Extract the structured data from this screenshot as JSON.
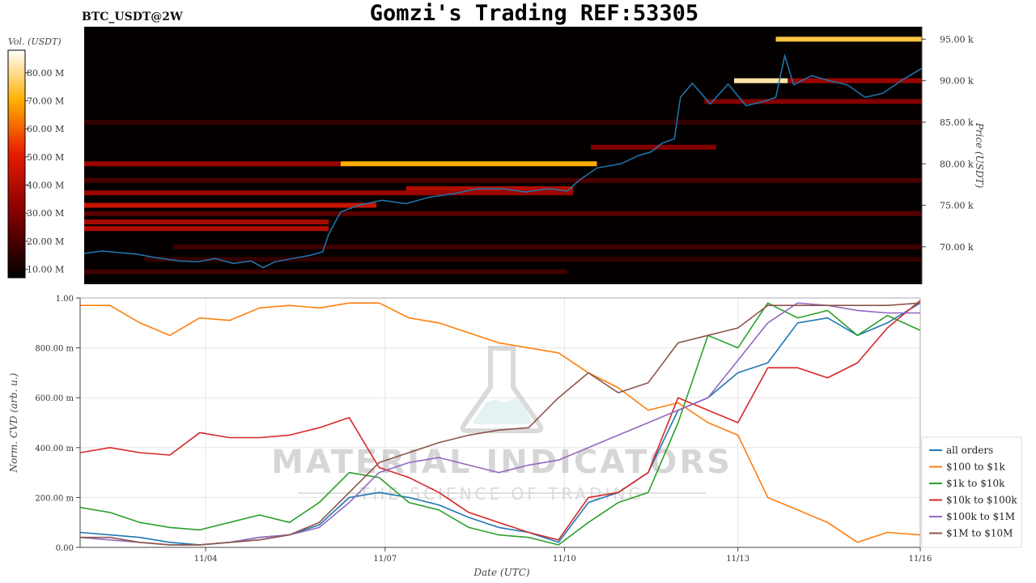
{
  "header": {
    "symbol": "BTC_USDT@2W",
    "title": "Gomzi's Trading REF:53305"
  },
  "watermark": {
    "brand": "MATERIAL INDICATORS",
    "tagline": "THE SCIENCE OF TRADING"
  },
  "colors": {
    "heat_low": "#000000",
    "heat_mid": "#cc1100",
    "heat_high": "#ffff66",
    "price_line": "#1f77b4",
    "grid": "#e6e6e6"
  },
  "chart_data": [
    {
      "type": "heatmap",
      "ylabel": "Price (USDT)",
      "ylim": [
        65500,
        96500
      ],
      "yticks": [
        {
          "v": 70000,
          "label": "70.00 k"
        },
        {
          "v": 75000,
          "label": "75.00 k"
        },
        {
          "v": 80000,
          "label": "80.00 k"
        },
        {
          "v": 85000,
          "label": "85.00 k"
        },
        {
          "v": 90000,
          "label": "90.00 k"
        },
        {
          "v": 95000,
          "label": "95.00 k"
        }
      ],
      "colorbar": {
        "label": "Vol. (USDT)",
        "range": [
          7000000,
          88000000
        ],
        "ticks": [
          {
            "v": 10000000,
            "label": "10.00 M"
          },
          {
            "v": 20000000,
            "label": "20.00 M"
          },
          {
            "v": 30000000,
            "label": "30.00 M"
          },
          {
            "v": 40000000,
            "label": "40.00 M"
          },
          {
            "v": 50000000,
            "label": "50.00 M"
          },
          {
            "v": 60000000,
            "label": "60.00 M"
          },
          {
            "v": 70000000,
            "label": "70.00 M"
          },
          {
            "v": 80000000,
            "label": "80.00 M"
          }
        ]
      },
      "xlim": [
        0,
        14.05
      ],
      "bands": [
        {
          "price": 95000,
          "x0": 11.6,
          "x1": 14.05,
          "vol": 75000000
        },
        {
          "price": 90000,
          "x0": 10.9,
          "x1": 11.8,
          "vol": 82000000
        },
        {
          "price": 90000,
          "x0": 11.8,
          "x1": 14.05,
          "vol": 35000000
        },
        {
          "price": 87500,
          "x0": 10.4,
          "x1": 14.05,
          "vol": 30000000
        },
        {
          "price": 85000,
          "x0": 0,
          "x1": 14.05,
          "vol": 16000000
        },
        {
          "price": 82000,
          "x0": 8.5,
          "x1": 10.6,
          "vol": 30000000
        },
        {
          "price": 80000,
          "x0": 4.3,
          "x1": 8.6,
          "vol": 70000000
        },
        {
          "price": 80000,
          "x0": 0,
          "x1": 4.3,
          "vol": 35000000
        },
        {
          "price": 78000,
          "x0": 0,
          "x1": 14.05,
          "vol": 20000000
        },
        {
          "price": 77000,
          "x0": 5.4,
          "x1": 8.2,
          "vol": 40000000
        },
        {
          "price": 76500,
          "x0": 0,
          "x1": 8.2,
          "vol": 35000000
        },
        {
          "price": 75000,
          "x0": 0,
          "x1": 4.9,
          "vol": 45000000
        },
        {
          "price": 74000,
          "x0": 0,
          "x1": 14.05,
          "vol": 22000000
        },
        {
          "price": 73000,
          "x0": 0,
          "x1": 4.1,
          "vol": 38000000
        },
        {
          "price": 72200,
          "x0": 0,
          "x1": 4.1,
          "vol": 40000000
        },
        {
          "price": 70000,
          "x0": 1.5,
          "x1": 14.05,
          "vol": 18000000
        },
        {
          "price": 68500,
          "x0": 1.0,
          "x1": 14.05,
          "vol": 16000000
        },
        {
          "price": 67000,
          "x0": 0,
          "x1": 8.1,
          "vol": 18000000
        }
      ],
      "price": {
        "x": [
          0,
          0.3,
          0.6,
          0.9,
          1.2,
          1.6,
          1.9,
          2.2,
          2.5,
          2.8,
          3.0,
          3.2,
          3.5,
          3.8,
          4.0,
          4.1,
          4.3,
          4.6,
          5.0,
          5.4,
          5.8,
          6.2,
          6.6,
          7.0,
          7.4,
          7.8,
          8.1,
          8.3,
          8.6,
          9.0,
          9.3,
          9.5,
          9.7,
          9.9,
          10.0,
          10.2,
          10.5,
          10.8,
          11.1,
          11.4,
          11.6,
          11.75,
          11.9,
          12.2,
          12.5,
          12.8,
          13.1,
          13.4,
          13.7,
          14.05
        ],
        "y": [
          69200,
          69500,
          69300,
          69100,
          68700,
          68300,
          68200,
          68600,
          68000,
          68300,
          67500,
          68200,
          68600,
          69000,
          69400,
          71500,
          74200,
          75000,
          75600,
          75200,
          76000,
          76400,
          77000,
          77000,
          76600,
          77000,
          76700,
          78000,
          79500,
          80000,
          81000,
          81400,
          82500,
          83000,
          88000,
          89700,
          87200,
          89600,
          87000,
          87500,
          88000,
          93000,
          89500,
          90600,
          90000,
          89500,
          88000,
          88500,
          90000,
          91500
        ]
      }
    },
    {
      "type": "line",
      "xlabel": "Date (UTC)",
      "ylabel": "Norm. CVD (arb. u.)",
      "xlim": [
        0,
        14.05
      ],
      "ylim": [
        0,
        1
      ],
      "xticks": [
        {
          "v": 2.1,
          "label": "11/04"
        },
        {
          "v": 5.1,
          "label": "11/07"
        },
        {
          "v": 8.1,
          "label": "11/10"
        },
        {
          "v": 11.0,
          "label": "11/13"
        },
        {
          "v": 14.05,
          "label": "11/16"
        }
      ],
      "yticks": [
        {
          "v": 0,
          "label": "0.00"
        },
        {
          "v": 0.2,
          "label": "200.00 m"
        },
        {
          "v": 0.4,
          "label": "400.00 m"
        },
        {
          "v": 0.6,
          "label": "600.00 m"
        },
        {
          "v": 0.8,
          "label": "800.00 m"
        },
        {
          "v": 1.0,
          "label": "1.00"
        }
      ],
      "legend": "right",
      "x": [
        0,
        0.5,
        1.0,
        1.5,
        2.0,
        2.5,
        3.0,
        3.5,
        4.0,
        4.5,
        5.0,
        5.5,
        6.0,
        6.5,
        7.0,
        7.5,
        8.0,
        8.5,
        9.0,
        9.5,
        10.0,
        10.5,
        11.0,
        11.5,
        12.0,
        12.5,
        13.0,
        13.5,
        14.05
      ],
      "series": [
        {
          "name": "all orders",
          "color": "#1f77b4",
          "values": [
            0.06,
            0.05,
            0.04,
            0.02,
            0.01,
            0.02,
            0.04,
            0.05,
            0.09,
            0.2,
            0.22,
            0.2,
            0.17,
            0.12,
            0.08,
            0.06,
            0.02,
            0.18,
            0.22,
            0.3,
            0.55,
            0.6,
            0.7,
            0.74,
            0.9,
            0.92,
            0.85,
            0.9,
            0.98
          ]
        },
        {
          "name": "$100 to $1k",
          "color": "#ff7f0e",
          "values": [
            0.97,
            0.97,
            0.9,
            0.85,
            0.92,
            0.91,
            0.96,
            0.97,
            0.96,
            0.98,
            0.98,
            0.92,
            0.9,
            0.86,
            0.82,
            0.8,
            0.78,
            0.7,
            0.64,
            0.55,
            0.58,
            0.5,
            0.45,
            0.2,
            0.15,
            0.1,
            0.02,
            0.06,
            0.05
          ]
        },
        {
          "name": "$1k to $10k",
          "color": "#2ca02c",
          "values": [
            0.16,
            0.14,
            0.1,
            0.08,
            0.07,
            0.1,
            0.13,
            0.1,
            0.18,
            0.3,
            0.28,
            0.18,
            0.15,
            0.08,
            0.05,
            0.04,
            0.01,
            0.1,
            0.18,
            0.22,
            0.5,
            0.85,
            0.8,
            0.98,
            0.92,
            0.95,
            0.85,
            0.93,
            0.87
          ]
        },
        {
          "name": "$10k to $100k",
          "color": "#d62728",
          "values": [
            0.38,
            0.4,
            0.38,
            0.37,
            0.46,
            0.44,
            0.44,
            0.45,
            0.48,
            0.52,
            0.32,
            0.28,
            0.22,
            0.14,
            0.1,
            0.06,
            0.03,
            0.2,
            0.22,
            0.3,
            0.6,
            0.55,
            0.5,
            0.72,
            0.72,
            0.68,
            0.74,
            0.88,
            0.99
          ]
        },
        {
          "name": "$100k to $1M",
          "color": "#9467bd",
          "values": [
            0.04,
            0.03,
            0.02,
            0.01,
            0.01,
            0.02,
            0.04,
            0.05,
            0.08,
            0.18,
            0.3,
            0.34,
            0.36,
            0.33,
            0.3,
            0.33,
            0.35,
            0.4,
            0.45,
            0.5,
            0.55,
            0.6,
            0.75,
            0.9,
            0.98,
            0.97,
            0.95,
            0.94,
            0.94
          ]
        },
        {
          "name": "$1M to $10M",
          "color": "#8c564b",
          "values": [
            0.04,
            0.04,
            0.02,
            0.01,
            0.01,
            0.02,
            0.03,
            0.05,
            0.1,
            0.22,
            0.34,
            0.38,
            0.42,
            0.45,
            0.47,
            0.48,
            0.6,
            0.7,
            0.62,
            0.66,
            0.82,
            0.85,
            0.88,
            0.97,
            0.97,
            0.97,
            0.97,
            0.97,
            0.98
          ]
        }
      ]
    }
  ]
}
